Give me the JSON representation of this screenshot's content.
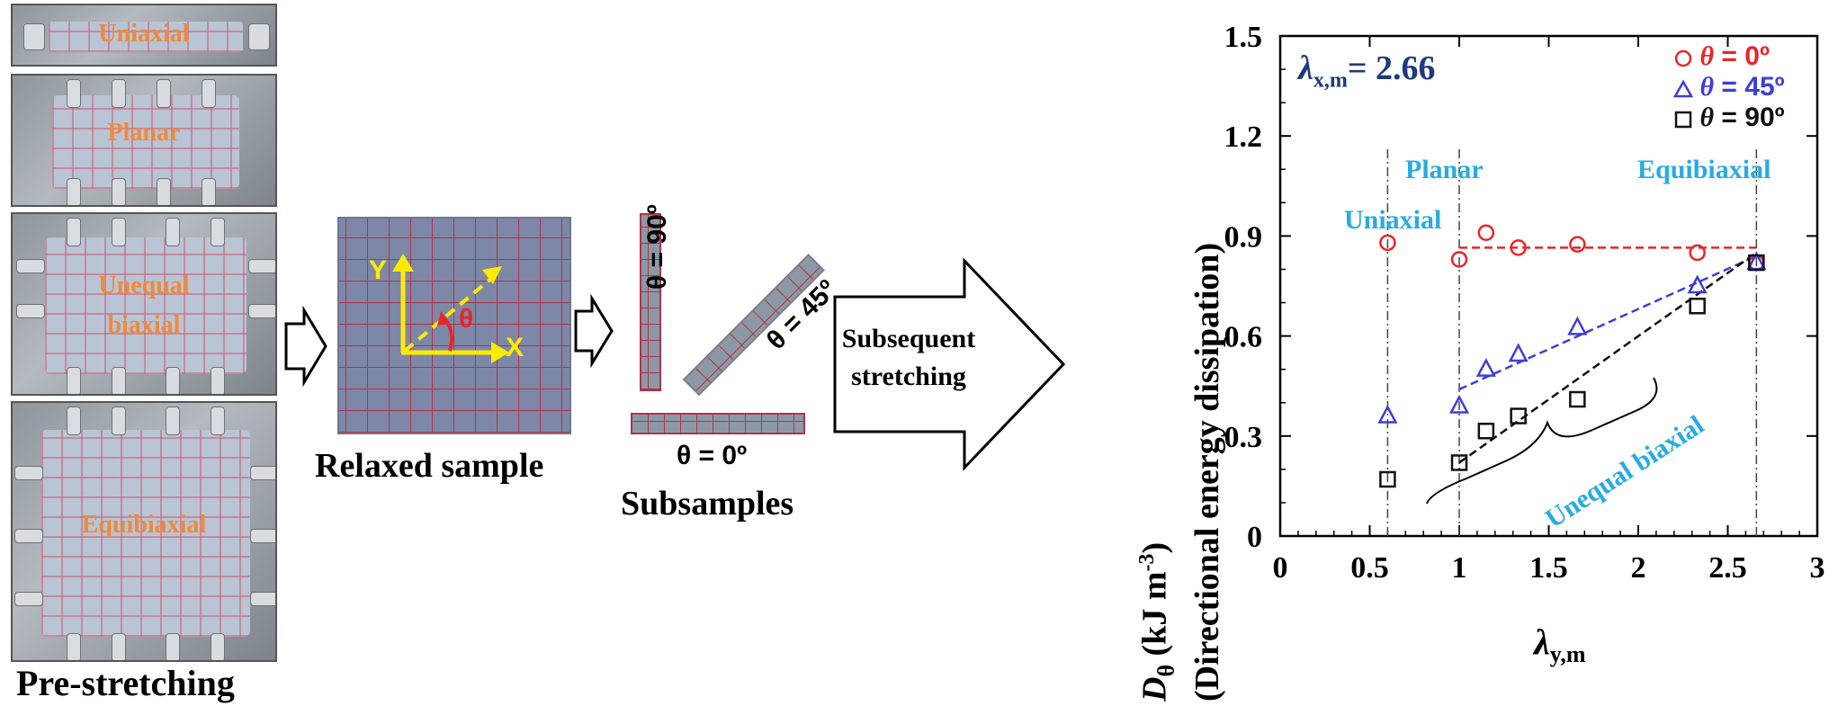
{
  "workflow": {
    "photos": [
      "Uniaxial",
      "Planar",
      "Unequal\nbiaxial",
      "Equibiaxial"
    ],
    "pre_stretching_caption": "Pre-stretching",
    "relaxed_sample_caption": "Relaxed sample",
    "axis_y": "Y",
    "axis_x": "X",
    "angle_symbol": "θ",
    "subsample_90": "θ = 90º",
    "subsample_45": "θ = 45º",
    "subsample_0": "θ = 0º",
    "subsamples_caption": "Subsamples",
    "stretching_arrow": "Subsequent\nstretching"
  },
  "chart_data": {
    "type": "scatter",
    "ylabel_symbol": "D",
    "ylabel_sub": "θ",
    "ylabel_unit": " (kJ m",
    "ylabel_sup": "-3",
    "ylabel_close": ")",
    "ylabel_line2": "(Directional energy dissipation)",
    "xlabel_symbol": "λ",
    "xlabel_sub": "y,m",
    "annotation_lambda_symbol": "λ",
    "annotation_lambda_sub": "x,m",
    "annotation_lambda_value": "= 2.66",
    "xlim": [
      0,
      3
    ],
    "ylim": [
      0,
      1.5
    ],
    "xticks": [
      "0",
      "0.5",
      "1",
      "1.5",
      "2",
      "2.5",
      "3"
    ],
    "yticks": [
      "0",
      "0.3",
      "0.6",
      "0.9",
      "1.2",
      "1.5"
    ],
    "xtick_values": [
      0,
      0.5,
      1,
      1.5,
      2,
      2.5,
      3
    ],
    "ytick_values": [
      0,
      0.3,
      0.6,
      0.9,
      1.2,
      1.5
    ],
    "legend_position": "top-right",
    "series": [
      {
        "name": "θ = 0º",
        "legend_symbol": "θ",
        "legend_rest": " = 0º",
        "marker": "circle",
        "color": "#e8262a",
        "x": [
          0.6,
          1.0,
          1.15,
          1.33,
          1.66,
          2.33,
          2.66
        ],
        "y": [
          0.88,
          0.83,
          0.91,
          0.865,
          0.875,
          0.85,
          0.82
        ]
      },
      {
        "name": "θ = 45º",
        "legend_symbol": "θ",
        "legend_rest": " = 45º",
        "marker": "triangle",
        "color": "#3e3ed6",
        "x": [
          0.6,
          1.0,
          1.15,
          1.33,
          1.66,
          2.33,
          2.66
        ],
        "y": [
          0.36,
          0.39,
          0.5,
          0.545,
          0.625,
          0.75,
          0.82
        ]
      },
      {
        "name": "θ = 90º",
        "legend_symbol": "θ",
        "legend_rest": " = 90º",
        "marker": "square",
        "color": "#111111",
        "x": [
          0.6,
          1.0,
          1.15,
          1.33,
          1.66,
          2.33,
          2.66
        ],
        "y": [
          0.17,
          0.22,
          0.315,
          0.36,
          0.41,
          0.69,
          0.82
        ]
      }
    ],
    "trend_lines": [
      {
        "series": "θ = 0º",
        "color": "#e8262a",
        "x": [
          1.0,
          2.66
        ],
        "y": [
          0.865,
          0.865
        ]
      },
      {
        "series": "θ = 45º",
        "color": "#3e3ed6",
        "x": [
          1.0,
          2.66
        ],
        "y": [
          0.44,
          0.84
        ]
      },
      {
        "series": "θ = 90º",
        "color": "#111111",
        "x": [
          1.0,
          2.66
        ],
        "y": [
          0.22,
          0.85
        ]
      }
    ],
    "vertical_lines": [
      0.6,
      1.0,
      2.66
    ],
    "annotations": {
      "uniaxial": "Uniaxial",
      "planar": "Planar",
      "equibiaxial": "Equibiaxial",
      "unequal_biaxial": "Unequal biaxial",
      "color": "#29abe2"
    }
  }
}
